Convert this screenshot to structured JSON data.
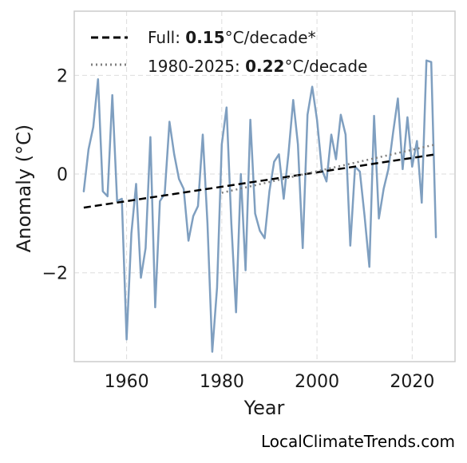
{
  "chart_data": {
    "type": "line",
    "xlabel": "Year",
    "ylabel": "Anomaly (°C)",
    "xlim": [
      1949,
      2029
    ],
    "ylim": [
      -3.8,
      3.3
    ],
    "x_ticks": [
      1960,
      1980,
      2000,
      2020
    ],
    "y_ticks": [
      -2,
      0,
      2
    ],
    "y_tick_labels": [
      "−2",
      "0",
      "2"
    ],
    "grid": true,
    "legend_position": "top-left",
    "series": [
      {
        "color": "#7f9fc0",
        "style": "solid",
        "x": [
          1951,
          1952,
          1953,
          1954,
          1955,
          1956,
          1957,
          1958,
          1959,
          1960,
          1961,
          1962,
          1963,
          1964,
          1965,
          1966,
          1967,
          1968,
          1969,
          1970,
          1971,
          1972,
          1973,
          1974,
          1975,
          1976,
          1977,
          1978,
          1979,
          1980,
          1981,
          1982,
          1983,
          1984,
          1985,
          1986,
          1987,
          1988,
          1989,
          1990,
          1991,
          1992,
          1993,
          1994,
          1995,
          1996,
          1997,
          1998,
          1999,
          2000,
          2001,
          2002,
          2003,
          2004,
          2005,
          2006,
          2007,
          2008,
          2009,
          2010,
          2011,
          2012,
          2013,
          2014,
          2015,
          2016,
          2017,
          2018,
          2019,
          2020,
          2021,
          2022,
          2023,
          2024,
          2025
        ],
        "values": [
          -0.35,
          0.5,
          0.95,
          1.92,
          -0.35,
          -0.45,
          1.6,
          -0.55,
          -0.5,
          -3.35,
          -1.2,
          -0.2,
          -2.1,
          -1.5,
          0.75,
          -2.7,
          -0.55,
          -0.4,
          1.06,
          0.4,
          -0.1,
          -0.3,
          -1.35,
          -0.85,
          -0.65,
          0.8,
          -1.0,
          -3.6,
          -2.3,
          0.6,
          1.35,
          -1.0,
          -2.8,
          0.0,
          -1.95,
          1.1,
          -0.8,
          -1.15,
          -1.3,
          -0.35,
          0.25,
          0.4,
          -0.5,
          0.4,
          1.5,
          0.6,
          -1.5,
          1.2,
          1.77,
          1.1,
          0.1,
          -0.15,
          0.8,
          0.3,
          1.2,
          0.8,
          -1.45,
          0.15,
          0.05,
          -0.85,
          -1.88,
          1.18,
          -0.9,
          -0.3,
          0.1,
          0.85,
          1.53,
          0.1,
          1.15,
          0.15,
          0.67,
          -0.58,
          2.3,
          2.27,
          -1.28
        ]
      },
      {
        "name": "Full: 0.15°C/decade*",
        "color": "#000000",
        "style": "dashed",
        "x": [
          1951,
          2025
        ],
        "values": [
          -0.68,
          0.4
        ]
      },
      {
        "name": "1980-2025: 0.22°C/decade",
        "color": "#808080",
        "style": "dotted",
        "x": [
          1980,
          2025
        ],
        "values": [
          -0.38,
          0.6
        ]
      }
    ]
  },
  "legend": {
    "items": [
      {
        "prefix": "Full: ",
        "value": "0.15",
        "suffix": "°C/decade*"
      },
      {
        "prefix": "1980-2025: ",
        "value": "0.22",
        "suffix": "°C/decade"
      }
    ]
  },
  "source_label": "LocalClimateTrends.com",
  "colors": {
    "series_line": "#7f9fc0",
    "full_trend": "#000000",
    "recent_trend": "#808080",
    "grid": "#dddddd",
    "frame": "#cccccc"
  }
}
